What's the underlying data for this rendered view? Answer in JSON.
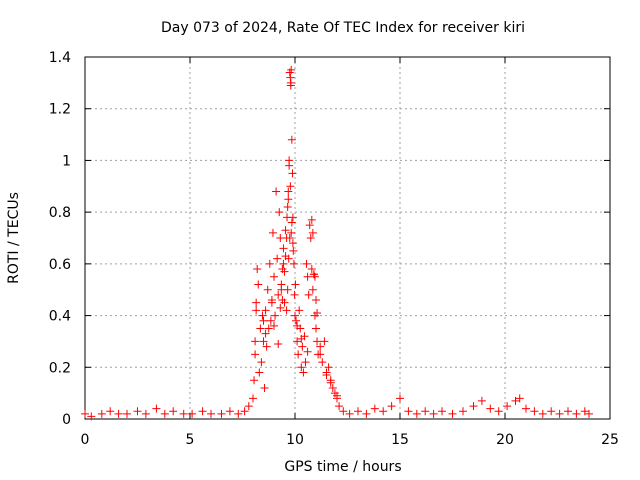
{
  "chart_data": {
    "type": "scatter",
    "title": "Day 073 of 2024, Rate Of TEC Index for receiver kiri",
    "xlabel": "GPS time / hours",
    "ylabel": "ROTI / TECUs",
    "xlim": [
      0,
      25
    ],
    "ylim": [
      0,
      1.4
    ],
    "xticks": [
      0,
      5,
      10,
      15,
      20,
      25
    ],
    "xtick_labels": [
      "0",
      "5",
      "10",
      "15",
      "20",
      "25"
    ],
    "yticks": [
      0,
      0.2,
      0.4,
      0.6,
      0.8,
      1.0,
      1.2,
      1.4
    ],
    "ytick_labels": [
      "0",
      "0.2",
      "0.4",
      "0.6",
      "0.8",
      "1",
      "1.2",
      "1.4"
    ],
    "grid": true,
    "marker": "plus",
    "marker_color": "#ff0000",
    "series": [
      {
        "x": [
          0.0,
          0.3,
          0.8,
          1.2,
          1.6,
          2.0,
          2.5,
          2.9,
          3.4,
          3.8,
          4.2,
          4.7,
          5.1,
          5.6,
          6.0,
          6.5,
          6.9,
          7.3,
          7.6,
          7.8,
          8.0,
          8.05,
          8.1,
          8.15,
          8.2,
          8.25,
          8.3,
          8.35,
          8.4,
          8.45,
          8.5,
          8.55,
          8.6,
          8.65,
          8.7,
          8.75,
          8.8,
          8.85,
          8.9,
          8.95,
          9.0,
          9.05,
          9.1,
          9.15,
          9.2,
          9.25,
          9.3,
          9.35,
          9.4,
          9.45,
          9.5,
          9.55,
          9.6,
          9.62,
          9.65,
          9.68,
          9.7,
          9.72,
          9.75,
          9.78,
          9.8,
          9.82,
          9.85,
          9.88,
          9.9,
          9.92,
          9.95,
          9.98,
          10.0,
          10.02,
          10.05,
          10.1,
          10.15,
          10.2,
          10.25,
          10.3,
          10.35,
          10.4,
          10.45,
          10.5,
          10.55,
          10.6,
          10.65,
          10.7,
          10.75,
          10.8,
          10.85,
          10.9,
          10.95,
          11.0,
          11.05,
          11.1,
          11.2,
          11.3,
          11.4,
          11.5,
          11.6,
          11.7,
          11.8,
          11.9,
          12.0,
          12.1,
          12.3,
          12.6,
          13.0,
          13.4,
          13.8,
          14.2,
          14.6,
          15.0,
          15.4,
          15.8,
          16.2,
          16.6,
          17.0,
          17.5,
          18.0,
          18.5,
          18.9,
          19.3,
          19.7,
          20.1,
          20.5,
          20.7,
          21.0,
          21.4,
          21.8,
          22.2,
          22.6,
          23.0,
          23.4,
          23.8,
          24.0,
          9.75,
          9.78,
          9.8,
          9.72,
          9.68,
          9.65,
          9.85,
          9.82,
          9.9,
          9.6,
          9.55,
          9.5,
          9.45,
          9.4,
          9.35,
          9.3,
          10.8,
          10.85,
          10.9,
          10.95,
          11.0,
          11.05,
          8.1,
          8.15,
          8.5,
          8.6,
          8.9,
          9.0,
          9.2,
          10.1,
          10.3,
          10.6,
          11.2,
          11.5,
          11.7,
          12.0
        ],
        "y": [
          0.02,
          0.01,
          0.02,
          0.03,
          0.02,
          0.02,
          0.03,
          0.02,
          0.04,
          0.02,
          0.03,
          0.02,
          0.02,
          0.03,
          0.02,
          0.02,
          0.03,
          0.02,
          0.03,
          0.05,
          0.08,
          0.15,
          0.25,
          0.45,
          0.58,
          0.52,
          0.18,
          0.35,
          0.22,
          0.4,
          0.3,
          0.12,
          0.42,
          0.28,
          0.5,
          0.35,
          0.6,
          0.38,
          0.45,
          0.72,
          0.55,
          0.4,
          0.88,
          0.62,
          0.48,
          0.8,
          0.7,
          0.52,
          0.58,
          0.66,
          0.45,
          0.73,
          0.42,
          0.78,
          0.5,
          0.85,
          0.62,
          1.0,
          0.7,
          0.9,
          1.3,
          1.35,
          1.08,
          0.95,
          0.78,
          0.65,
          0.6,
          0.48,
          0.4,
          0.52,
          0.38,
          0.3,
          0.25,
          0.42,
          0.35,
          0.2,
          0.28,
          0.18,
          0.32,
          0.22,
          0.6,
          0.55,
          0.48,
          0.75,
          0.7,
          0.58,
          0.5,
          0.56,
          0.4,
          0.35,
          0.3,
          0.25,
          0.28,
          0.22,
          0.3,
          0.18,
          0.2,
          0.15,
          0.12,
          0.1,
          0.08,
          0.05,
          0.03,
          0.02,
          0.03,
          0.02,
          0.04,
          0.03,
          0.05,
          0.08,
          0.03,
          0.02,
          0.03,
          0.02,
          0.03,
          0.02,
          0.03,
          0.05,
          0.07,
          0.04,
          0.03,
          0.05,
          0.07,
          0.08,
          0.04,
          0.03,
          0.02,
          0.03,
          0.02,
          0.03,
          0.02,
          0.03,
          0.02,
          1.34,
          1.32,
          1.29,
          0.98,
          0.88,
          0.82,
          0.76,
          0.72,
          0.68,
          0.7,
          0.63,
          0.57,
          0.6,
          0.46,
          0.5,
          0.43,
          0.77,
          0.72,
          0.56,
          0.55,
          0.46,
          0.41,
          0.3,
          0.42,
          0.38,
          0.33,
          0.46,
          0.36,
          0.29,
          0.36,
          0.31,
          0.26,
          0.25,
          0.17,
          0.14,
          0.09
        ]
      }
    ]
  }
}
